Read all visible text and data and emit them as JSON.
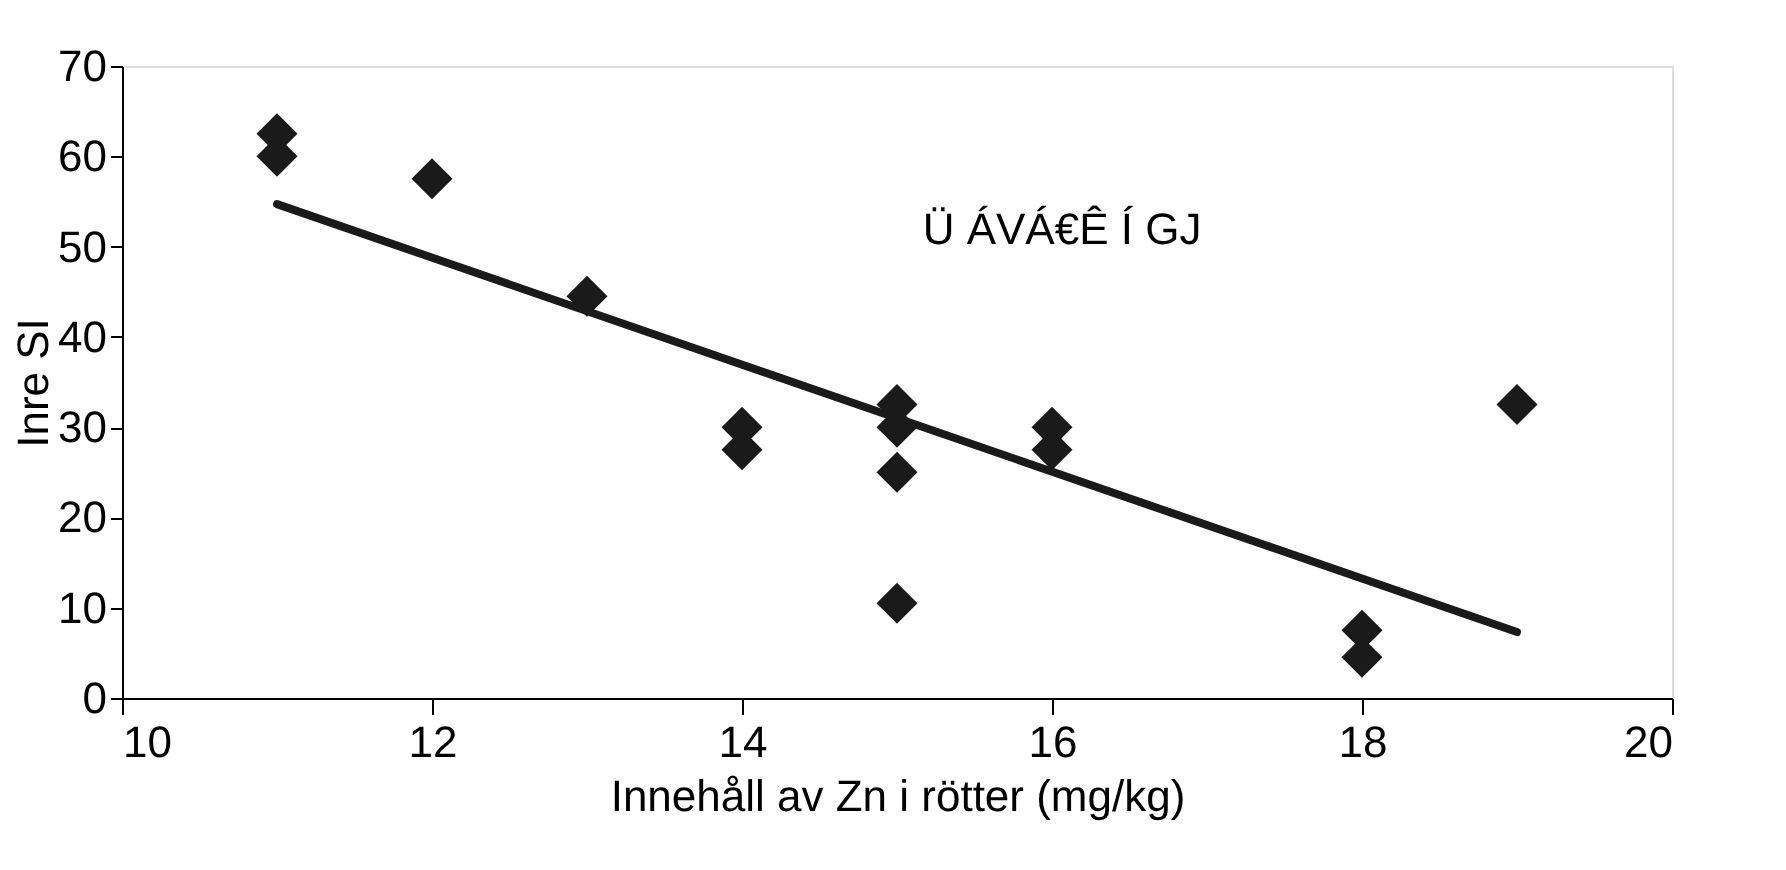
{
  "chart_data": {
    "type": "scatter",
    "xlabel": "Innehåll av Zn i rötter (mg/kg)",
    "ylabel": "Inre SI",
    "xlim": [
      10,
      20
    ],
    "xticks": [
      10,
      12,
      14,
      16,
      18,
      20
    ],
    "ylim": [
      0,
      70
    ],
    "yticks": [
      0,
      10,
      20,
      30,
      40,
      50,
      60,
      70
    ],
    "grid": false,
    "series": [
      {
        "color": "#1a1a1a",
        "marker": "diamond",
        "x": [
          11,
          11,
          12,
          13,
          14,
          14,
          15,
          15,
          15,
          15,
          16,
          16,
          18,
          18,
          19
        ],
        "values": [
          62.5,
          60,
          57.5,
          44.5,
          30,
          27.5,
          32.5,
          30,
          25,
          10.5,
          30,
          27.5,
          7.5,
          4.5,
          32.5
        ]
      },
      {
        "type": "line",
        "color": "#1a1a1a",
        "line_style": "solid",
        "x": [
          11,
          19
        ],
        "values": [
          54.7,
          7.3
        ]
      }
    ],
    "annotations": [
      "Ü ÁVÁ€Ê Í GJ"
    ]
  }
}
